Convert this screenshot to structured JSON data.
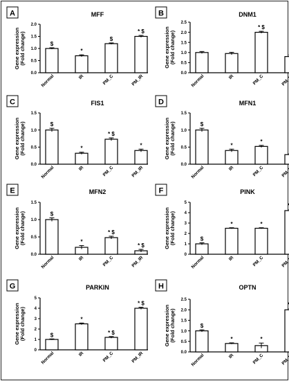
{
  "chart_data": [
    {
      "panel": "A",
      "type": "bar",
      "title": "MFF",
      "ylabel": "Gene expression",
      "ylabel2": "(Fold change)",
      "ylim": [
        0,
        2.0
      ],
      "yticks": [
        "0.0",
        "0.5",
        "1.0",
        "1.5",
        "2.0"
      ],
      "categories": [
        "Normal",
        "IR",
        "PM_C",
        "PM_IR"
      ],
      "values": [
        1.0,
        0.7,
        1.2,
        1.5
      ],
      "errors": [
        0.03,
        0.04,
        0.03,
        0.04
      ],
      "annotations": [
        "$",
        "*",
        "$",
        "*$"
      ]
    },
    {
      "panel": "B",
      "type": "bar",
      "title": "DNM1",
      "ylabel": "Gene expression",
      "ylabel2": "(Fold change)",
      "ylim": [
        0,
        2.5
      ],
      "yticks": [
        "0.0",
        "0.5",
        "1.0",
        "1.5",
        "2.0",
        "2.5"
      ],
      "categories": [
        "Normal",
        "IR",
        "PM_C",
        "PM_IR"
      ],
      "values": [
        1.0,
        0.95,
        2.0,
        0.8
      ],
      "errors": [
        0.05,
        0.06,
        0.05,
        0.08
      ],
      "annotations": [
        "",
        "",
        "*$",
        "*"
      ]
    },
    {
      "panel": "C",
      "type": "bar",
      "title": "FIS1",
      "ylabel": "Gene expression",
      "ylabel2": "(Fold change)",
      "ylim": [
        0,
        1.5
      ],
      "yticks": [
        "0.0",
        "0.5",
        "1.0",
        "1.5"
      ],
      "categories": [
        "Normal",
        "IR",
        "PM_C",
        "PM_IR"
      ],
      "values": [
        1.0,
        0.32,
        0.73,
        0.4
      ],
      "errors": [
        0.05,
        0.03,
        0.04,
        0.04
      ],
      "annotations": [
        "$",
        "*",
        "*$",
        "*"
      ]
    },
    {
      "panel": "D",
      "type": "bar",
      "title": "MFN1",
      "ylabel": "Gene expression",
      "ylabel2": "(Fold change)",
      "ylim": [
        0,
        1.5
      ],
      "yticks": [
        "0.0",
        "0.5",
        "1.0",
        "1.5"
      ],
      "categories": [
        "Normal",
        "IR",
        "PM_C",
        "PM_IR"
      ],
      "values": [
        1.0,
        0.4,
        0.52,
        0.28
      ],
      "errors": [
        0.05,
        0.04,
        0.03,
        0.03
      ],
      "annotations": [
        "$",
        "*",
        "*",
        "*"
      ]
    },
    {
      "panel": "E",
      "type": "bar",
      "title": "MFN2",
      "ylabel": "Gene expression",
      "ylabel2": "(Fold change)",
      "ylim": [
        0,
        1.5
      ],
      "yticks": [
        "0.0",
        "0.5",
        "1.0",
        "1.5"
      ],
      "categories": [
        "Normal",
        "IR",
        "PM_C",
        "PM_IR"
      ],
      "values": [
        1.0,
        0.2,
        0.48,
        0.1
      ],
      "errors": [
        0.05,
        0.05,
        0.04,
        0.04
      ],
      "annotations": [
        "$",
        "*",
        "*$",
        "*$"
      ]
    },
    {
      "panel": "F",
      "type": "bar",
      "title": "PINK",
      "ylabel": "Gene expression",
      "ylabel2": "(Fold change)",
      "ylim": [
        0,
        5
      ],
      "yticks": [
        "0",
        "1",
        "2",
        "3",
        "4",
        "5"
      ],
      "categories": [
        "Normal",
        "IR",
        "PM_C",
        "PM_IR"
      ],
      "values": [
        1.0,
        2.5,
        2.5,
        4.2
      ],
      "errors": [
        0.1,
        0.05,
        0.05,
        0.1
      ],
      "annotations": [
        "$",
        "*",
        "*",
        "*$"
      ]
    },
    {
      "panel": "G",
      "type": "bar",
      "title": "PARKIN",
      "ylabel": "Gene expression",
      "ylabel2": "(Fold change)",
      "ylim": [
        0,
        5
      ],
      "yticks": [
        "0",
        "1",
        "2",
        "3",
        "4",
        "5"
      ],
      "categories": [
        "Normal",
        "IR",
        "PM_C",
        "PM_IR"
      ],
      "values": [
        1.0,
        2.5,
        1.2,
        4.0
      ],
      "errors": [
        0.05,
        0.08,
        0.08,
        0.1
      ],
      "annotations": [
        "$",
        "*",
        "*$",
        "*$"
      ]
    },
    {
      "panel": "H",
      "type": "bar",
      "title": "OPTN",
      "ylabel": "Gene expression",
      "ylabel2": "(Fold change)",
      "ylim": [
        0,
        2.5
      ],
      "yticks": [
        "0.0",
        "0.5",
        "1.0",
        "1.5",
        "2.0",
        "2.5"
      ],
      "categories": [
        "Normal",
        "IR",
        "PM_C",
        "PM_IR"
      ],
      "values": [
        1.0,
        0.4,
        0.3,
        2.0
      ],
      "errors": [
        0.05,
        0.03,
        0.12,
        0.05
      ],
      "annotations": [
        "$",
        "*",
        "*",
        "*$"
      ]
    }
  ]
}
